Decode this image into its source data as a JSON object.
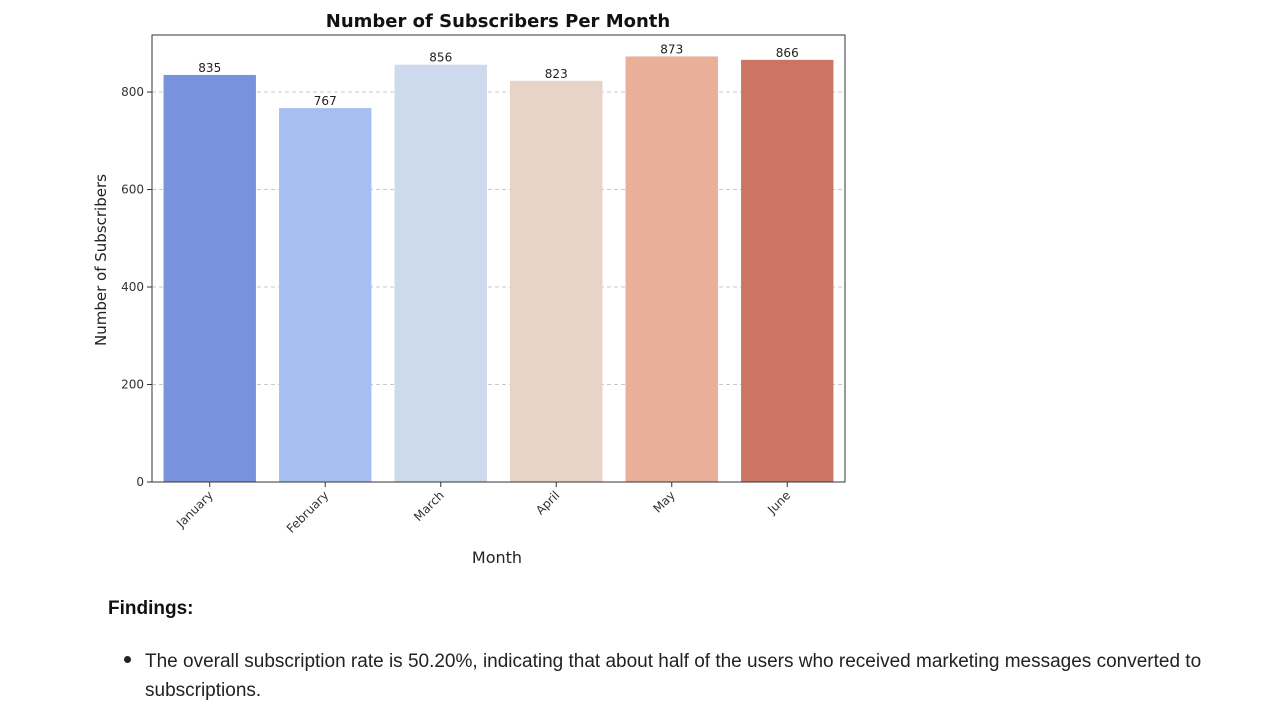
{
  "chart_data": {
    "type": "bar",
    "title": "Number of Subscribers Per Month",
    "xlabel": "Month",
    "ylabel": "Number of Subscribers",
    "categories": [
      "January",
      "February",
      "March",
      "April",
      "May",
      "June"
    ],
    "values": [
      835,
      767,
      856,
      823,
      873,
      866
    ],
    "colors": [
      "#7892de",
      "#a5bff3",
      "#cdd9ec",
      "#e7d3c8",
      "#e9af98",
      "#cd7564"
    ],
    "ylim": [
      0,
      917
    ],
    "yticks": [
      0,
      200,
      400,
      600,
      800
    ],
    "grid": "y-dashed"
  },
  "findings": {
    "heading": "Findings:",
    "items": [
      "The overall subscription rate is 50.20%, indicating that about half of the users who received marketing messages converted to subscriptions."
    ]
  }
}
